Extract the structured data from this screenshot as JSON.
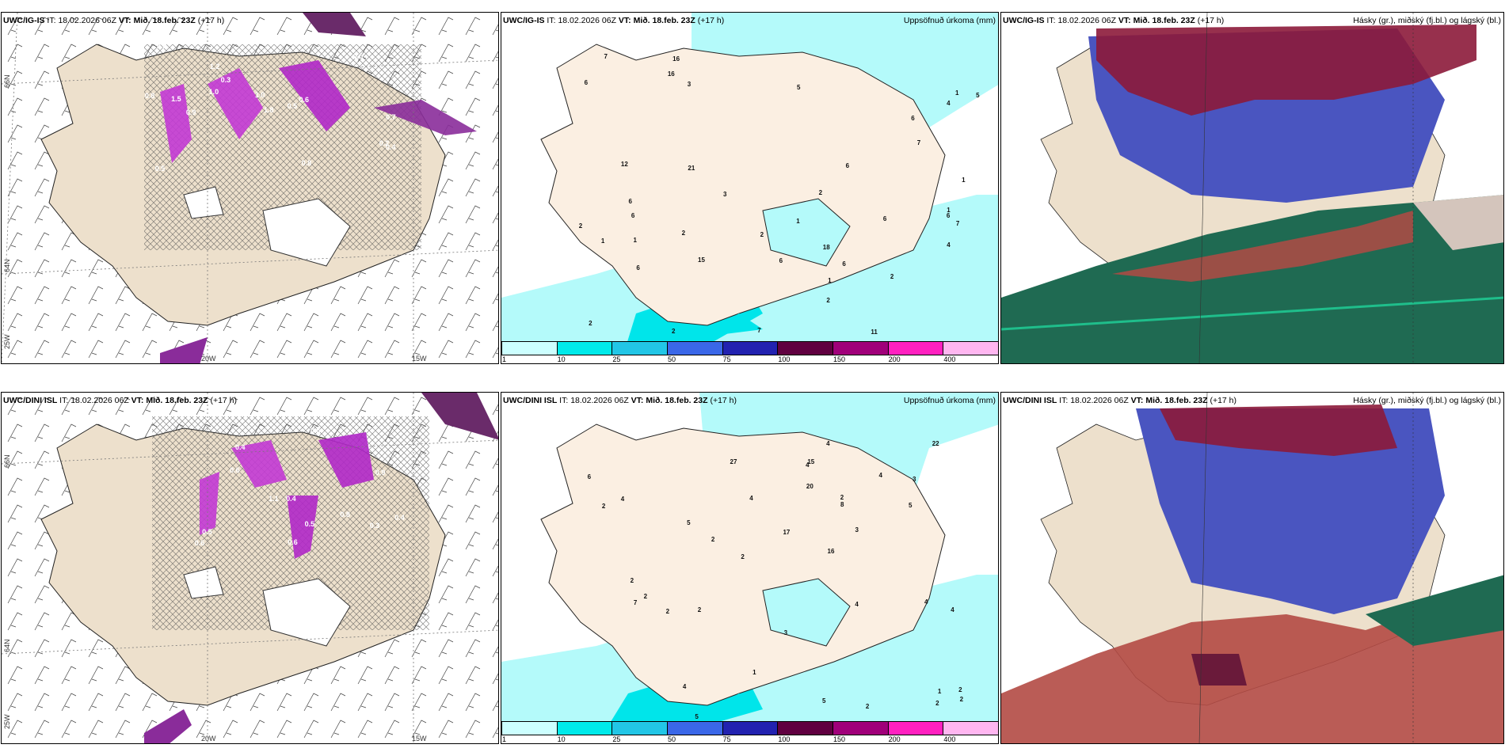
{
  "rows": [
    {
      "model": "UWC/IG-IS",
      "it_label": "IT:",
      "it_value": "18.02.2026 06Z",
      "vt_label": "VT:",
      "vt_value": "Mið. 18.feb. 23Z",
      "lead": "(+17 h)",
      "precip_title": "Uppsöfnuð úrkoma (mm)",
      "cloud_title": "Hásky (gr.), miðský (fj.bl.) og lágský (bl.)",
      "precip_numbers": [
        "2",
        "2",
        "7",
        "7",
        "6",
        "4",
        "1",
        "2",
        "1",
        "2",
        "6",
        "5",
        "3",
        "1",
        "2",
        "2",
        "1",
        "3",
        "4",
        "2",
        "1",
        "1",
        "1",
        "2",
        "6",
        "6",
        "6",
        "12",
        "15",
        "16",
        "11",
        "6",
        "5",
        "6",
        "21",
        "18",
        "16",
        "6",
        "7",
        "6",
        "6",
        "7"
      ],
      "wind_numbers": [
        "0.3",
        "0.2",
        "0.5",
        "0.8",
        "1.5",
        "1.2",
        "1.8",
        "0.9",
        "0.6",
        "0.5",
        "1.0",
        "0.7",
        "2.2",
        "1.0",
        "0.8",
        "0.5",
        "0.4"
      ]
    },
    {
      "model": "UWC/DINI ISL",
      "it_label": "IT:",
      "it_value": "18.02.2026 06Z",
      "vt_label": "VT:",
      "vt_value": "Mið. 18.feb. 23Z",
      "lead": "(+17 h)",
      "precip_title": "Uppsöfnuð úrkoma (mm)",
      "cloud_title": "Hásky (gr.), miðský (fj.bl.) og lágský (bl.)",
      "precip_numbers": [
        "3",
        "4",
        "2",
        "5",
        "5",
        "7",
        "4",
        "2",
        "2",
        "3",
        "2",
        "2",
        "2",
        "4",
        "4",
        "2",
        "2",
        "3",
        "2",
        "2",
        "1",
        "1",
        "2",
        "2",
        "8",
        "6",
        "5",
        "4",
        "15",
        "16",
        "27",
        "22",
        "17",
        "20",
        "5",
        "4",
        "4",
        "4",
        "4"
      ],
      "wind_numbers": [
        "0.5",
        "0.4",
        "0.4",
        "1.1",
        "0.6",
        "0.9",
        "0.5",
        "0.8",
        "0.6",
        "0.4",
        "0.6",
        "0.5",
        "0.3"
      ]
    }
  ],
  "grid_labels": {
    "lat_66": "66N",
    "lat_64": "64N",
    "lon_25": "25W",
    "lon_20": "20W",
    "lon_15": "15W"
  },
  "colorbar": {
    "labels": [
      "1",
      "10",
      "25",
      "50",
      "75",
      "100",
      "150",
      "200",
      "400"
    ],
    "colors": [
      "#ccffff",
      "#00eaea",
      "#22c6e6",
      "#3a67e8",
      "#2222b0",
      "#600040",
      "#a0007a",
      "#ff20c0",
      "#ffb6f0"
    ]
  },
  "colors": {
    "land": "#ede0cc",
    "precip_light": "#b4fafa",
    "precip_mid": "#00e5ea",
    "cloud_high": "#8c1a3a",
    "cloud_mid": "#4a55c0",
    "cloud_low": "#1f6a52"
  }
}
